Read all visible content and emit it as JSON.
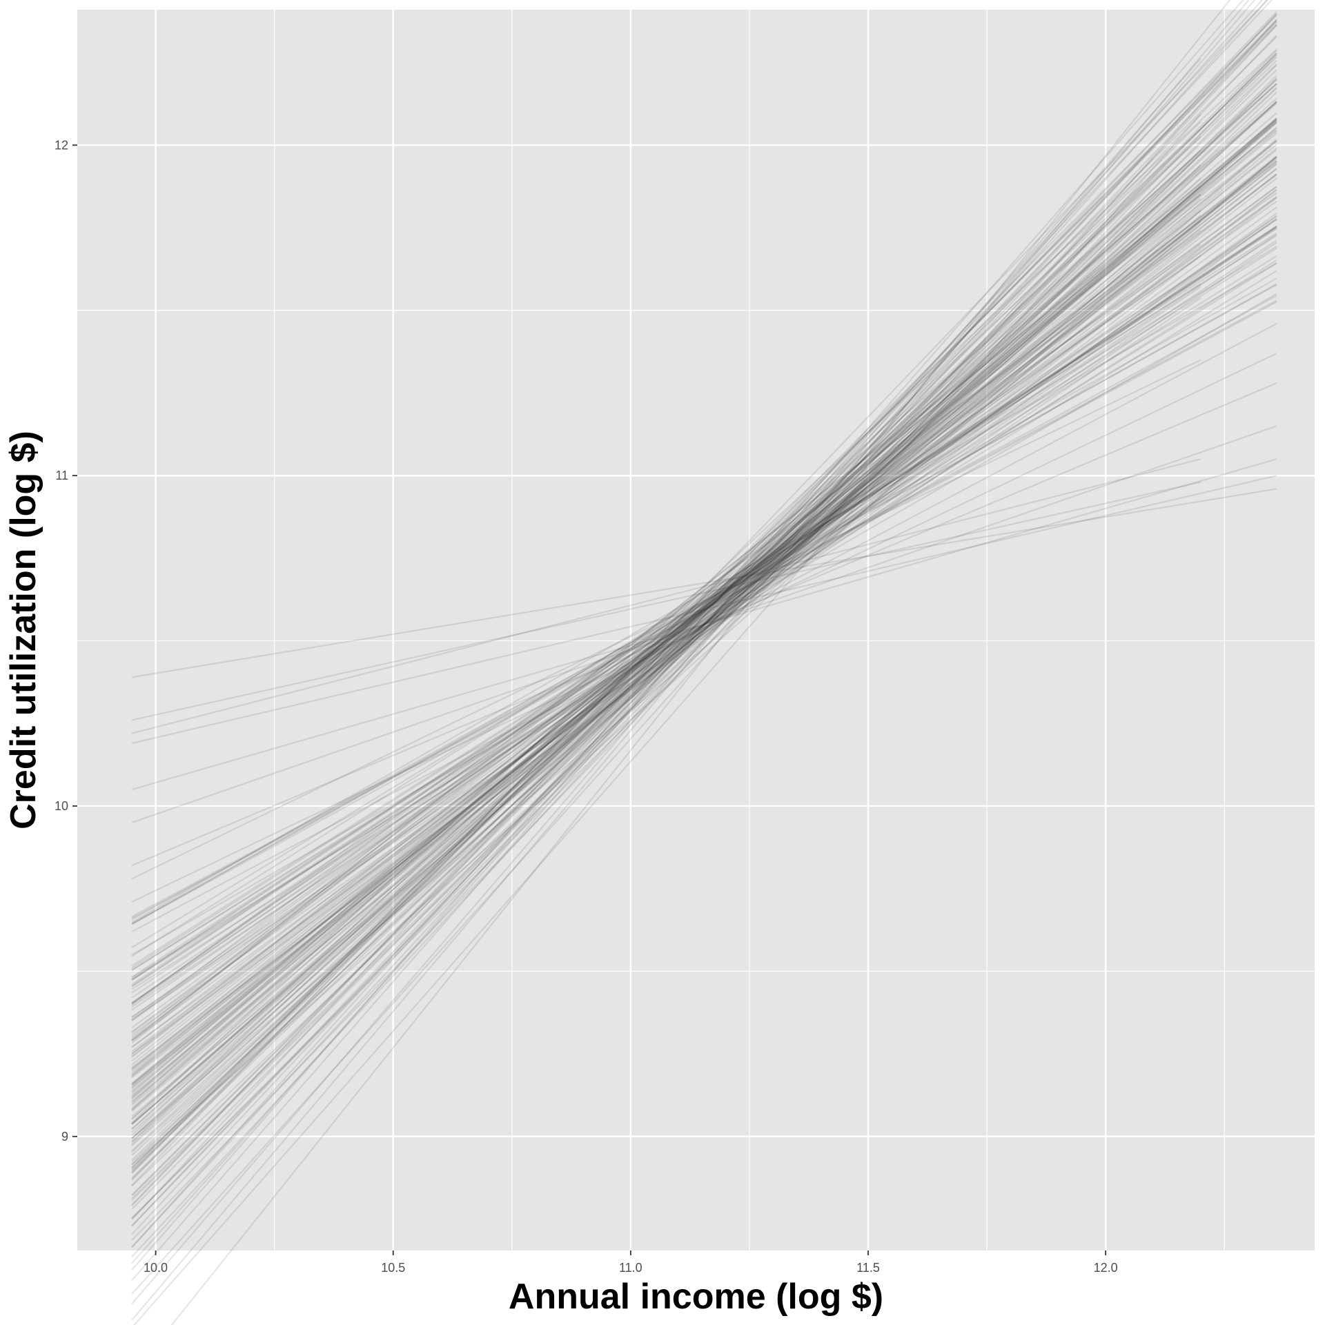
{
  "chart_data": {
    "type": "line",
    "title": "",
    "xlabel": "Annual income (log $)",
    "ylabel": "Credit utilization (log $)",
    "xlim": [
      9.835,
      12.44
    ],
    "ylim": [
      8.655,
      12.41
    ],
    "x_ticks": [
      10.0,
      10.5,
      11.0,
      11.5,
      12.0
    ],
    "x_tick_labels": [
      "10.0",
      "10.5",
      "11.0",
      "11.5",
      "12.0"
    ],
    "y_ticks": [
      9,
      10,
      11,
      12
    ],
    "y_tick_labels": [
      "9",
      "10",
      "11",
      "12"
    ],
    "grid": true,
    "legend": "none",
    "line_color": "#333333",
    "line_alpha": 0.12,
    "panel_background": "#e5e5e5",
    "grid_color": "#ffffff",
    "note": "Spaghetti plot of ~150 posterior regression lines; every line pivots near (11.25, 10.68).",
    "series": [
      {
        "x": [
          9.95,
          12.36
        ],
        "y": [
          9.12,
          12.08
        ]
      },
      {
        "x": [
          9.95,
          12.36
        ],
        "y": [
          9.25,
          11.95
        ]
      },
      {
        "x": [
          9.95,
          12.36
        ],
        "y": [
          9.36,
          11.83
        ]
      },
      {
        "x": [
          9.95,
          12.36
        ],
        "y": [
          9.42,
          11.73
        ]
      },
      {
        "x": [
          9.95,
          12.36
        ],
        "y": [
          9.48,
          11.62
        ]
      },
      {
        "x": [
          9.95,
          12.36
        ],
        "y": [
          9.55,
          11.55
        ]
      },
      {
        "x": [
          9.95,
          12.36
        ],
        "y": [
          9.62,
          11.46
        ]
      },
      {
        "x": [
          9.95,
          12.36
        ],
        "y": [
          9.71,
          11.37
        ]
      },
      {
        "x": [
          9.95,
          12.36
        ],
        "y": [
          9.82,
          11.28
        ]
      },
      {
        "x": [
          9.95,
          12.36
        ],
        "y": [
          9.95,
          11.15
        ]
      },
      {
        "x": [
          9.95,
          12.36
        ],
        "y": [
          10.05,
          11.05
        ]
      },
      {
        "x": [
          9.95,
          12.36
        ],
        "y": [
          10.19,
          11.0
        ]
      },
      {
        "x": [
          9.95,
          12.36
        ],
        "y": [
          10.39,
          10.96
        ]
      },
      {
        "x": [
          9.95,
          12.36
        ],
        "y": [
          8.78,
          12.28
        ]
      },
      {
        "x": [
          9.95,
          12.36
        ],
        "y": [
          8.85,
          12.16
        ]
      },
      {
        "x": [
          9.95,
          12.2
        ],
        "y": [
          9.3,
          11.85
        ]
      },
      {
        "x": [
          9.95,
          12.2
        ],
        "y": [
          9.78,
          11.35
        ]
      },
      {
        "x": [
          9.95,
          12.2
        ],
        "y": [
          10.22,
          11.05
        ]
      },
      {
        "x": [
          9.95,
          12.2
        ],
        "y": [
          10.26,
          10.98
        ]
      },
      {
        "x": [
          9.95,
          12.2
        ],
        "y": [
          9.51,
          11.58
        ]
      }
    ]
  }
}
